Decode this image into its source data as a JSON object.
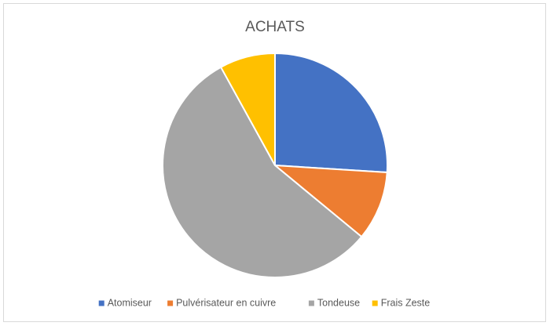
{
  "chart_data": {
    "type": "pie",
    "title": "ACHATS",
    "categories": [
      "Atomiseur",
      "Pulvérisateur en cuivre",
      "Tondeuse",
      "Frais Zeste"
    ],
    "values": [
      26,
      10,
      56,
      8
    ],
    "colors": [
      "#4472c4",
      "#ed7d31",
      "#a5a5a5",
      "#ffc000"
    ],
    "legend": "bottom"
  }
}
